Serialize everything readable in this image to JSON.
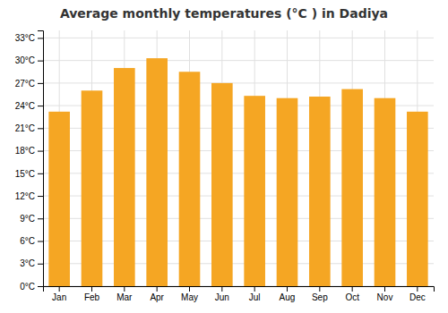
{
  "chart_data": {
    "type": "bar",
    "title": "Average monthly temperatures (°C ) in Dadiya",
    "categories": [
      "Jan",
      "Feb",
      "Mar",
      "Apr",
      "May",
      "Jun",
      "Jul",
      "Aug",
      "Sep",
      "Oct",
      "Nov",
      "Dec"
    ],
    "values": [
      23.2,
      26.0,
      29.0,
      30.3,
      28.5,
      27.0,
      25.3,
      25.0,
      25.2,
      26.2,
      25.0,
      23.2
    ],
    "color": "#F5A623",
    "ylim": [
      0,
      34
    ],
    "yticks": [
      {
        "value": 0,
        "label": "0°C"
      },
      {
        "value": 3,
        "label": "3°C"
      },
      {
        "value": 6,
        "label": "6°C"
      },
      {
        "value": 9,
        "label": "9°C"
      },
      {
        "value": 12,
        "label": "12°C"
      },
      {
        "value": 15,
        "label": "15°C"
      },
      {
        "value": 18,
        "label": "18°C"
      },
      {
        "value": 21,
        "label": "21°C"
      },
      {
        "value": 24,
        "label": "24°C"
      },
      {
        "value": 27,
        "label": "27°C"
      },
      {
        "value": 30,
        "label": "30°C"
      },
      {
        "value": 33,
        "label": "33°C"
      }
    ],
    "grid": true
  }
}
